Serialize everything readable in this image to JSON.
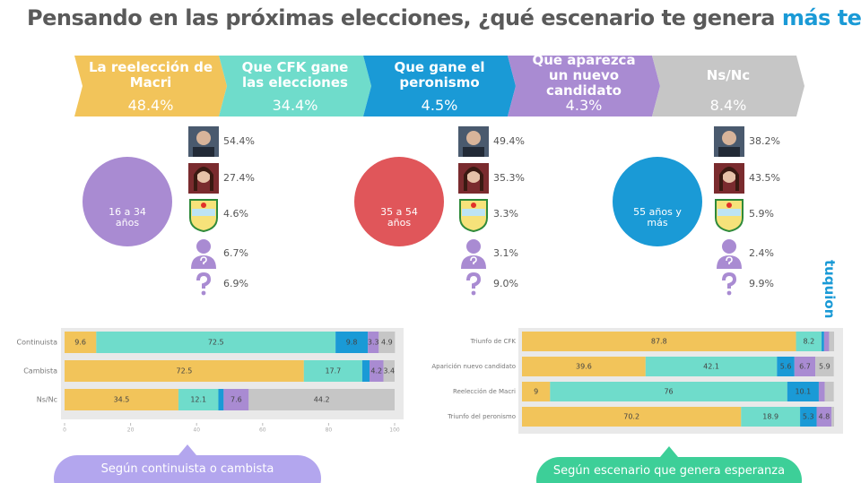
{
  "title": {
    "before": "Pensando en las próximas elecciones, ¿qué escenario te genera ",
    "highlight": "más temor",
    "after": "?"
  },
  "options": [
    {
      "label": "La reelección de Macri",
      "value": "48.4%",
      "color": "#f2c45a"
    },
    {
      "label": "Que CFK gane las elecciones",
      "value": "34.4%",
      "color": "#6fdccb"
    },
    {
      "label": "Que gane el peronismo",
      "value": "4.5%",
      "color": "#1a9ad6"
    },
    {
      "label": "Que aparezca un nuevo candidato",
      "value": "4.3%",
      "color": "#a98bd2"
    },
    {
      "label": "Ns/Nc",
      "value": "8.4%",
      "color": "#c6c6c6"
    }
  ],
  "age_groups": [
    {
      "label": "16 a 34 años",
      "color": "#a98bd2",
      "results": [
        "54.4%",
        "27.4%",
        "4.6%",
        "6.7%",
        "6.9%"
      ]
    },
    {
      "label": "35 a 54 años",
      "color": "#e0565a",
      "results": [
        "49.4%",
        "35.3%",
        "3.3%",
        "3.1%",
        "9.0%"
      ]
    },
    {
      "label": "55 años y más",
      "color": "#1a9ad6",
      "results": [
        "38.2%",
        "43.5%",
        "5.9%",
        "2.4%",
        "9.9%"
      ]
    }
  ],
  "brand": "tuquion",
  "charts": [
    {
      "type": "stacked_bar_h",
      "categories": [
        "Continuista",
        "Cambista",
        "Ns/Nc"
      ],
      "series": [
        {
          "color": "#f2c45a",
          "values": [
            9.6,
            72.5,
            34.5
          ]
        },
        {
          "color": "#6fdccb",
          "values": [
            72.5,
            17.7,
            12.1
          ]
        },
        {
          "color": "#1a9ad6",
          "values": [
            9.8,
            2.2,
            1.6
          ]
        },
        {
          "color": "#a98bd2",
          "values": [
            3.3,
            4.2,
            7.6
          ]
        },
        {
          "color": "#c6c6c6",
          "values": [
            4.9,
            3.4,
            44.2
          ]
        }
      ],
      "xlim": [
        0,
        100
      ],
      "xticks": [
        0,
        20,
        40,
        60,
        80,
        100
      ],
      "caption": "Según continuista o cambista",
      "caption_color": "#b3a6ee"
    },
    {
      "type": "stacked_bar_h",
      "categories": [
        "Triunfo de CFK",
        "Aparición nuevo candidato",
        "Reelección de Macri",
        "Triunfo del peronismo"
      ],
      "series": [
        {
          "color": "#f2c45a",
          "values": [
            87.8,
            39.6,
            9,
            70.2
          ]
        },
        {
          "color": "#6fdccb",
          "values": [
            8.2,
            42.1,
            76,
            18.9
          ]
        },
        {
          "color": "#1a9ad6",
          "values": [
            0.8,
            5.6,
            10.1,
            5.3
          ]
        },
        {
          "color": "#a98bd2",
          "values": [
            1.6,
            6.7,
            1.9,
            4.8
          ]
        },
        {
          "color": "#c6c6c6",
          "values": [
            1.6,
            5.9,
            2.9,
            0.8
          ]
        }
      ],
      "xlim": [
        0,
        100
      ],
      "caption": "Según escenario que genera esperanza",
      "caption_color": "#3dcf98"
    }
  ]
}
